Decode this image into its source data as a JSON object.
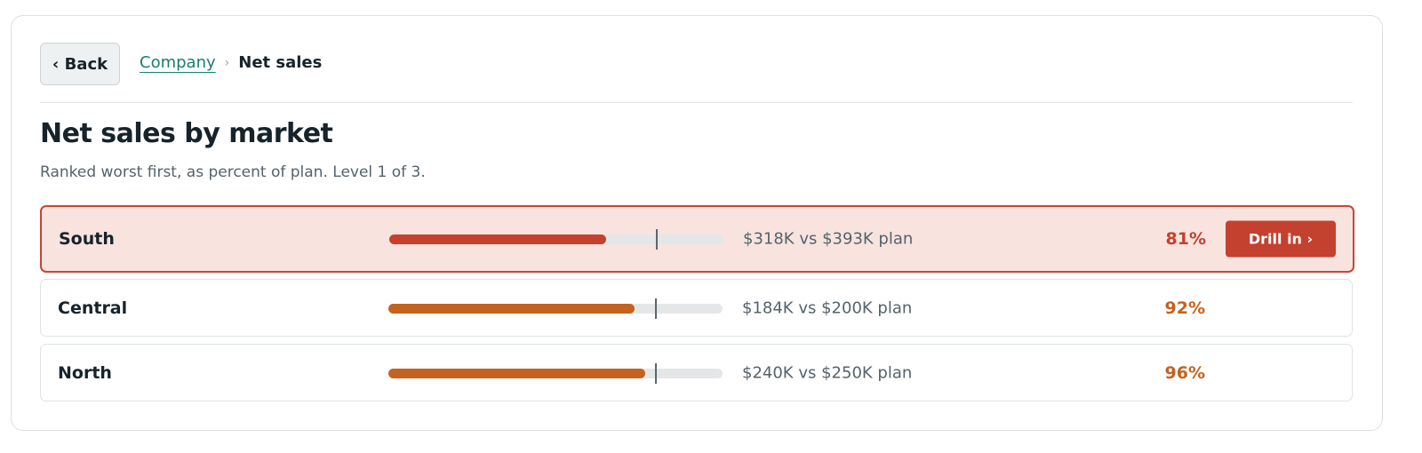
{
  "nav": {
    "back": "‹ Back",
    "breadcrumb": [
      "Company",
      "Net sales"
    ],
    "separator": "›"
  },
  "header": {
    "title": "Net sales by market",
    "subtitle": "Ranked worst first, as percent of plan. Level 1 of 3."
  },
  "bar_range": [
    0,
    125
  ],
  "plan_mark": 100,
  "rows": [
    {
      "name": "South",
      "value": 81,
      "value_label": "81%",
      "detail": "$318K vs $393K plan",
      "color": "#c4402f",
      "action": "Drill in ›"
    },
    {
      "name": "Central",
      "value": 92,
      "value_label": "92%",
      "detail": "$184K vs $200K plan",
      "color": "#c4621f"
    },
    {
      "name": "North",
      "value": 96,
      "value_label": "96%",
      "detail": "$240K vs $250K plan",
      "color": "#c4621f"
    }
  ]
}
